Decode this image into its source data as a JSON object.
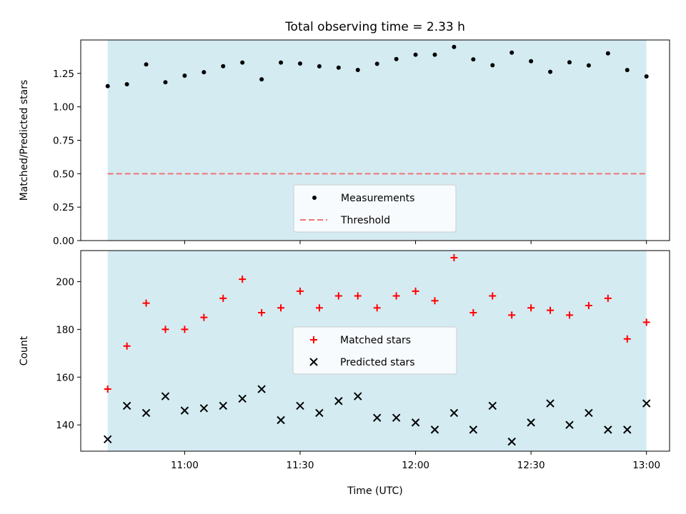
{
  "chart_data": {
    "title": "Total observing time = 2.33 h",
    "xlabel": "Time (UTC)",
    "x_ticks": [
      "11:00",
      "11:30",
      "12:00",
      "12:30",
      "13:00"
    ],
    "x_tick_values_min": [
      660,
      690,
      720,
      750,
      780
    ],
    "xlim_min": [
      633.0,
      786.0
    ],
    "observing_window_min": [
      640.0,
      780.0
    ],
    "times_min": [
      640,
      645,
      650,
      655,
      660,
      665,
      670,
      675,
      680,
      685,
      690,
      695,
      700,
      705,
      710,
      715,
      720,
      725,
      730,
      735,
      740,
      745,
      750,
      755,
      760,
      765,
      770,
      775,
      780
    ],
    "panels": [
      {
        "type": "scatter",
        "ylabel": "Matched/Predicted stars",
        "ylim": [
          0,
          1.5
        ],
        "y_ticks": [
          "0.00",
          "0.25",
          "0.50",
          "0.75",
          "1.00",
          "1.25"
        ],
        "y_tick_values": [
          0,
          0.25,
          0.5,
          0.75,
          1.0,
          1.25
        ],
        "series": [
          {
            "name": "Measurements",
            "marker": "dot",
            "color": "#000000",
            "values": [
              1.155,
              1.169,
              1.317,
              1.184,
              1.233,
              1.259,
              1.304,
              1.331,
              1.206,
              1.331,
              1.324,
              1.303,
              1.293,
              1.276,
              1.322,
              1.357,
              1.39,
              1.39,
              1.448,
              1.355,
              1.311,
              1.405,
              1.341,
              1.262,
              1.333,
              1.31,
              1.4,
              1.275,
              1.228
            ]
          }
        ],
        "threshold": {
          "name": "Threshold",
          "value": 0.5,
          "color": "#ef7474",
          "style": "dashed"
        },
        "legend_position": "lower-center"
      },
      {
        "type": "scatter",
        "ylabel": "Count",
        "ylim": [
          129,
          213
        ],
        "y_ticks": [
          "140",
          "160",
          "180",
          "200"
        ],
        "y_tick_values": [
          140,
          160,
          180,
          200
        ],
        "series": [
          {
            "name": "Matched stars",
            "marker": "plus",
            "color": "#ff0000",
            "values": [
              155,
              173,
              191,
              180,
              180,
              185,
              193,
              201,
              187,
              189,
              196,
              189,
              194,
              194,
              189,
              194,
              196,
              192,
              210,
              187,
              194,
              186,
              189,
              188,
              186,
              190,
              193,
              176,
              183
            ]
          },
          {
            "name": "Predicted stars",
            "marker": "x",
            "color": "#000000",
            "values": [
              134,
              148,
              145,
              152,
              146,
              147,
              148,
              151,
              155,
              142,
              148,
              145,
              150,
              152,
              143,
              143,
              141,
              138,
              145,
              138,
              148,
              133,
              141,
              149,
              140,
              145,
              138,
              138,
              149
            ]
          }
        ],
        "legend_position": "center"
      }
    ],
    "shade_color": "#add8e6",
    "grid": false
  }
}
